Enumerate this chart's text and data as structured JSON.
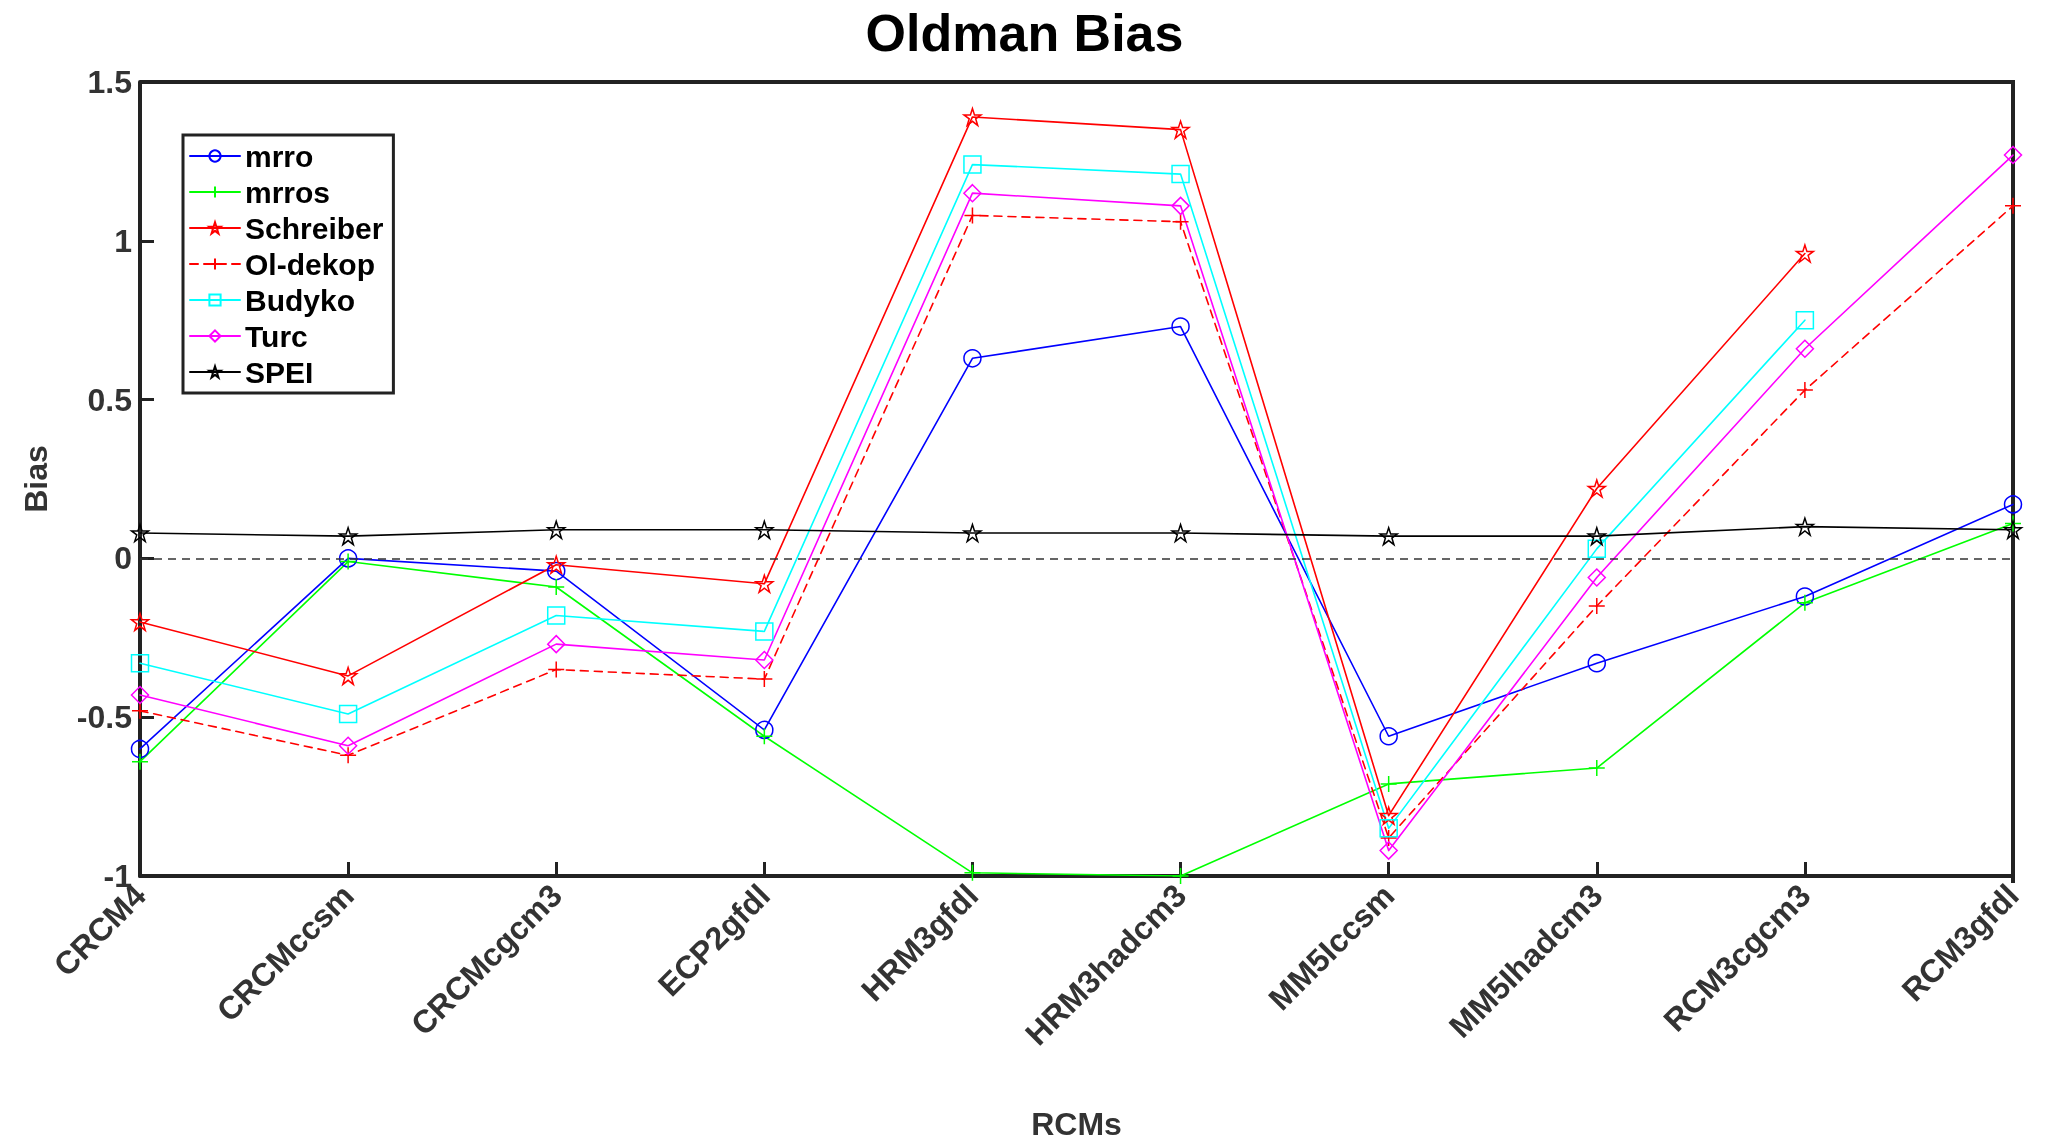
{
  "chart_data": {
    "type": "line",
    "title": "Oldman Bias",
    "xlabel": "RCMs",
    "ylabel": "Bias",
    "categories": [
      "CRCM4",
      "CRCMccsm",
      "CRCMcgcm3",
      "ECP2gfdl",
      "HRM3gfdl",
      "HRM3hadcm3",
      "MM5Iccsm",
      "MM5Ihadcm3",
      "RCM3cgcm3",
      "RCM3gfdl"
    ],
    "series": [
      {
        "name": "mrro",
        "color": "#0000ff",
        "marker": "circle",
        "values": [
          -0.6,
          0.0,
          -0.04,
          -0.54,
          0.63,
          0.73,
          -0.56,
          -0.33,
          -0.12,
          0.17
        ]
      },
      {
        "name": "mrros",
        "color": "#00ff00",
        "marker": "cross",
        "values": [
          -0.64,
          -0.01,
          -0.09,
          -0.56,
          -0.99,
          -1.0,
          -0.71,
          -0.66,
          -0.14,
          0.11
        ]
      },
      {
        "name": "Schreiber",
        "color": "#ff0000",
        "marker": "star",
        "values": [
          -0.2,
          -0.37,
          -0.02,
          -0.08,
          1.39,
          1.35,
          -0.81,
          0.22,
          0.96,
          null
        ]
      },
      {
        "name": "Ol-dekop",
        "color": "#ff0000",
        "marker": "cross",
        "line_style": "dashed",
        "values": [
          -0.48,
          -0.62,
          -0.35,
          -0.38,
          1.08,
          1.06,
          -0.88,
          -0.15,
          0.53,
          1.11
        ]
      },
      {
        "name": "Budyko",
        "color": "#00ffff",
        "marker": "square",
        "values": [
          -0.33,
          -0.49,
          -0.18,
          -0.23,
          1.24,
          1.21,
          -0.85,
          0.03,
          0.75,
          null
        ]
      },
      {
        "name": "Turc",
        "color": "#ff00ff",
        "marker": "diamond",
        "values": [
          -0.43,
          -0.59,
          -0.27,
          -0.32,
          1.15,
          1.11,
          -0.92,
          -0.06,
          0.66,
          1.27
        ]
      },
      {
        "name": "SPEI",
        "color": "#000000",
        "marker": "star",
        "values": [
          0.08,
          0.07,
          0.09,
          0.09,
          0.08,
          0.08,
          0.07,
          0.07,
          0.1,
          0.09
        ]
      }
    ],
    "ylim": [
      -1,
      1.5
    ],
    "yticks": [
      -1,
      -0.5,
      0,
      0.5,
      1,
      1.5
    ],
    "ref_lines": [
      {
        "axis": "y",
        "value": 0,
        "color": "#333333",
        "line_style": "dashed"
      }
    ],
    "legend": "top left",
    "grid": false
  }
}
